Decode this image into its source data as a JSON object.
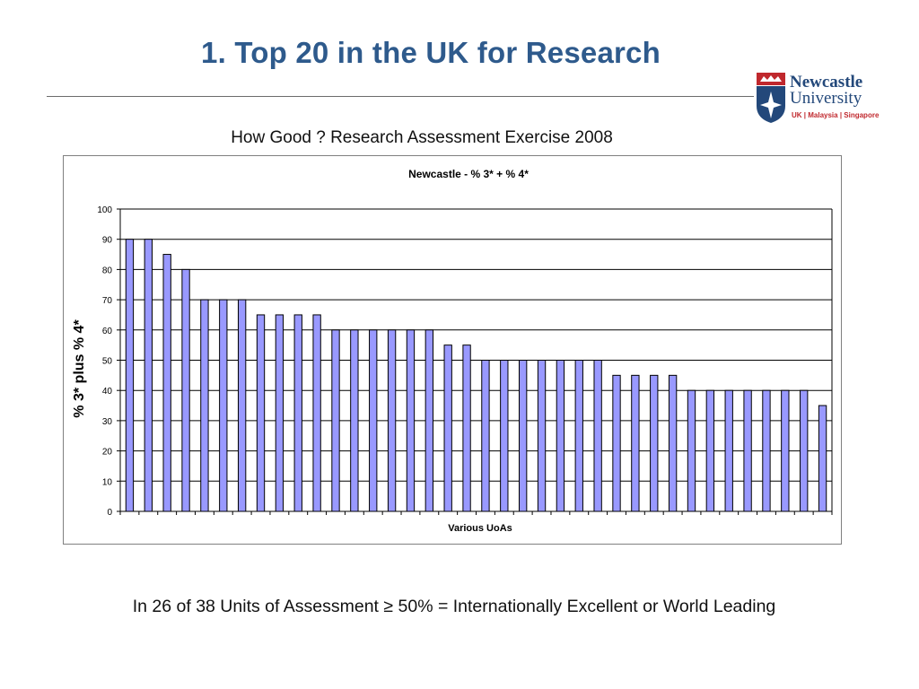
{
  "slide": {
    "title": "1. Top 20 in the UK for Research",
    "subtitle": "How Good ?  Research Assessment Exercise 2008",
    "footer": "In 26 of 38 Units of Assessment ≥ 50% = Internationally Excellent or World Leading"
  },
  "logo": {
    "name_line1": "Newcastle",
    "name_line2": "University",
    "campuses": "UK | Malaysia | Singapore",
    "colors": {
      "navy": "#23487a",
      "red": "#c0282d"
    }
  },
  "chart_data": {
    "type": "bar",
    "title": "Newcastle - % 3* + % 4*",
    "xlabel": "Various UoAs",
    "ylabel": "% 3* plus % 4*",
    "ylim": [
      0,
      100
    ],
    "yticks": [
      0,
      10,
      20,
      30,
      40,
      50,
      60,
      70,
      80,
      90,
      100
    ],
    "grid": true,
    "bar_color": "#9999ff",
    "values": [
      90,
      90,
      85,
      80,
      70,
      70,
      70,
      65,
      65,
      65,
      65,
      60,
      60,
      60,
      60,
      60,
      60,
      55,
      55,
      50,
      50,
      50,
      50,
      50,
      50,
      50,
      45,
      45,
      45,
      45,
      40,
      40,
      40,
      40,
      40,
      40,
      40,
      35
    ]
  }
}
